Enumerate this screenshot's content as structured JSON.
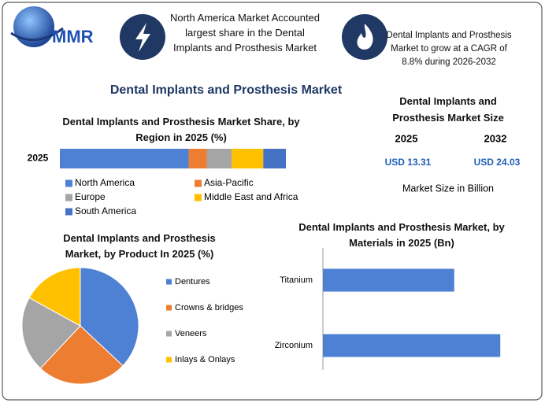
{
  "header": {
    "logo": "MMR",
    "fact1": "North America Market Accounted largest share in the Dental Implants and Prosthesis Market",
    "fact2": "Dental Implants and Prosthesis Market to grow at a CAGR of 8.8% during 2026-2032"
  },
  "title": "Dental Implants and Prosthesis Market",
  "market_size": {
    "title": "Dental Implants and Prosthesis Market Size",
    "years": [
      "2025",
      "2032"
    ],
    "values": [
      "USD 13.31",
      "USD 24.03"
    ],
    "note": "Market Size in Billion"
  },
  "chart_data": [
    {
      "type": "stacked_bar",
      "title": "Dental Implants and Prosthesis Market Share, by Region in 2025 (%)",
      "categories": [
        "2025"
      ],
      "xlim": [
        0,
        100
      ],
      "series": [
        {
          "name": "North America",
          "color": "#4e80d4",
          "values": [
            57
          ]
        },
        {
          "name": "Asia-Pacific",
          "color": "#ed7d31",
          "values": [
            8
          ]
        },
        {
          "name": "Europe",
          "color": "#a5a5a5",
          "values": [
            11
          ]
        },
        {
          "name": "Middle East and Africa",
          "color": "#ffc000",
          "values": [
            14
          ]
        },
        {
          "name": "South America",
          "color": "#4472c4",
          "values": [
            10
          ]
        }
      ]
    },
    {
      "type": "pie",
      "title": "Dental Implants and Prosthesis Market, by Product In 2025 (%)",
      "categories": [
        "Dentures",
        "Crowns & bridges",
        "Veneers",
        "Inlays & Onlays"
      ],
      "values": [
        37,
        25,
        21,
        17
      ],
      "colors": [
        "#4e80d4",
        "#ed7d31",
        "#a5a5a5",
        "#ffc000"
      ]
    },
    {
      "type": "hbar",
      "title": "Dental Implants and Prosthesis Market, by Materials in 2025 (Bn)",
      "categories": [
        "Titanium",
        "Zirconium"
      ],
      "values": [
        5.7,
        7.7
      ],
      "color": "#4e80d4",
      "xlim": [
        0,
        8
      ]
    }
  ]
}
